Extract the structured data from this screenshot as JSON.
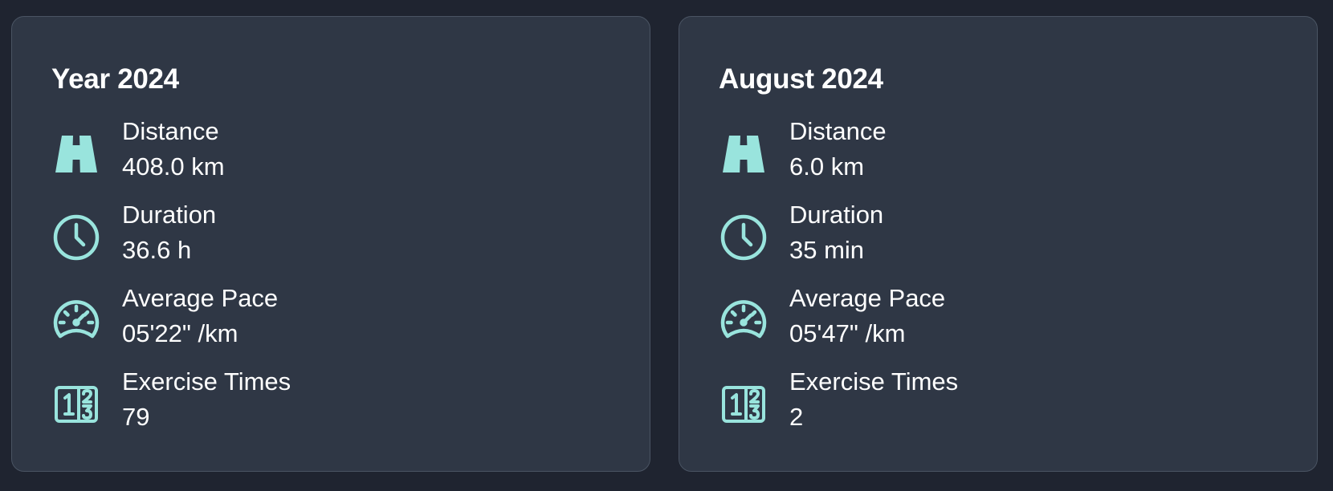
{
  "colors": {
    "background": "#1f2430",
    "card": "#2f3745",
    "card_border": "#4a5463",
    "text": "#ffffff",
    "icon": "#99e4dd"
  },
  "cards": [
    {
      "title": "Year 2024",
      "stats": [
        {
          "label": "Distance",
          "value": "408.0 km",
          "icon": "road-icon"
        },
        {
          "label": "Duration",
          "value": "36.6 h",
          "icon": "clock-icon"
        },
        {
          "label": "Average Pace",
          "value": "05'22\" /km",
          "icon": "speedometer-icon"
        },
        {
          "label": "Exercise Times",
          "value": "79",
          "icon": "numbers-icon"
        }
      ]
    },
    {
      "title": "August 2024",
      "stats": [
        {
          "label": "Distance",
          "value": "6.0 km",
          "icon": "road-icon"
        },
        {
          "label": "Duration",
          "value": "35 min",
          "icon": "clock-icon"
        },
        {
          "label": "Average Pace",
          "value": "05'47\" /km",
          "icon": "speedometer-icon"
        },
        {
          "label": "Exercise Times",
          "value": "2",
          "icon": "numbers-icon"
        }
      ]
    }
  ]
}
